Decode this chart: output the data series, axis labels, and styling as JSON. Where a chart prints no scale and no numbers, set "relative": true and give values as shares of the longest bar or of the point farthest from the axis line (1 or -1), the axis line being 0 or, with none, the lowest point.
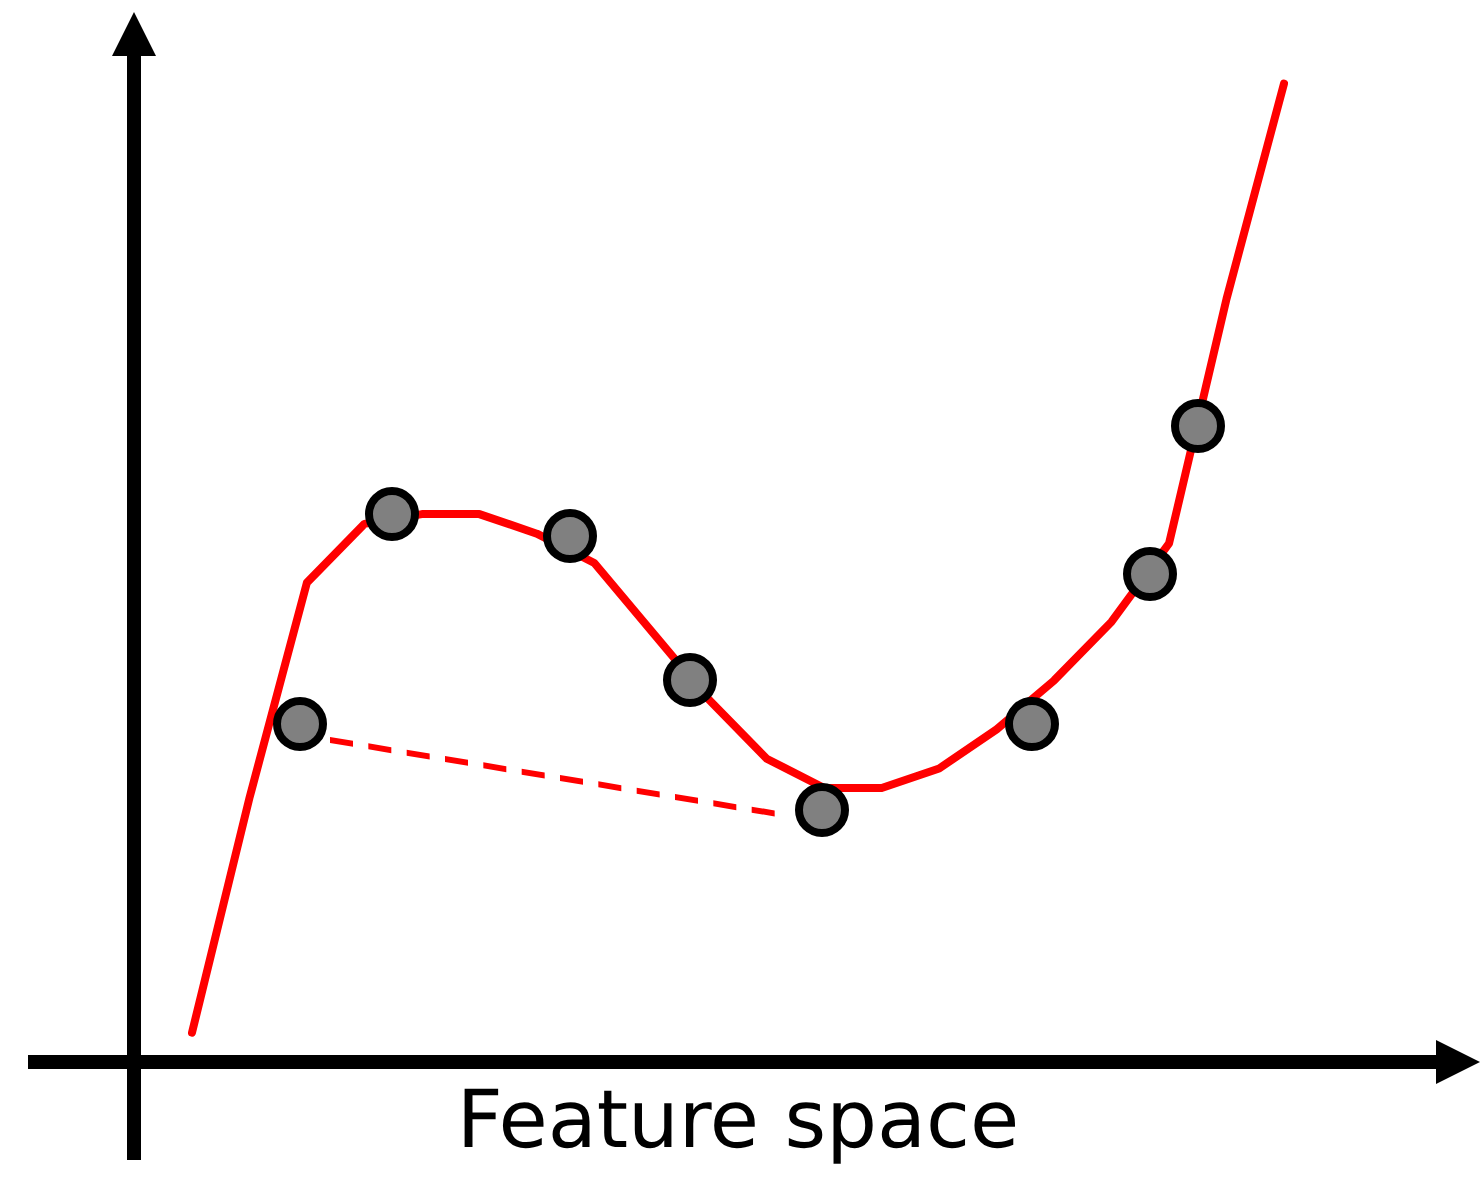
{
  "chart_data": {
    "type": "line",
    "relative": true,
    "xlabel": "Feature space",
    "color": "#ff0000",
    "line_style": "solid",
    "categories": [
      null,
      null,
      null,
      null,
      null,
      null,
      null,
      null,
      null,
      null,
      null,
      null,
      null,
      null,
      null,
      null,
      null,
      null,
      null,
      null
    ],
    "values": [
      0.03,
      0.27,
      0.49,
      0.55,
      0.56,
      0.56,
      0.54,
      0.51,
      0.44,
      0.37,
      0.31,
      0.28,
      0.28,
      0.3,
      0.34,
      0.39,
      0.45,
      0.53,
      0.78,
      1.0
    ]
  }
}
